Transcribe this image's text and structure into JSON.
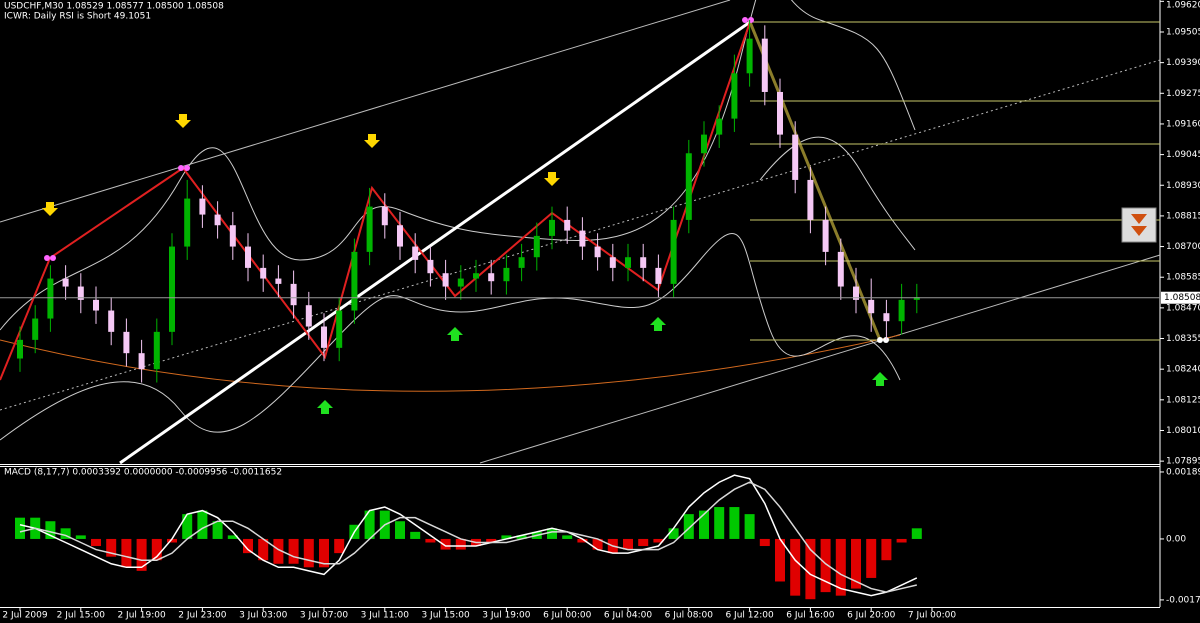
{
  "header": {
    "symbol_line": "USDCHF,M30  1.08529 1.08577 1.08500 1.08508",
    "indicator_line": "ICWR: Daily RSI is Short 49.1051"
  },
  "chart_data": [
    {
      "type": "candlestick",
      "categories": [
        "2 Jul 2009",
        null,
        null,
        null,
        "2 Jul 15:00",
        null,
        null,
        null,
        "2 Jul 19:00",
        null,
        null,
        null,
        "2 Jul 23:00",
        null,
        null,
        null,
        "3 Jul 03:00",
        null,
        null,
        null,
        "3 Jul 07:00",
        null,
        null,
        null,
        "3 Jul 11:00",
        null,
        null,
        null,
        "3 Jul 15:00",
        null,
        null,
        null,
        "3 Jul 19:00",
        null,
        null,
        null,
        "6 Jul 00:00",
        null,
        null,
        null,
        "6 Jul 04:00",
        null,
        null,
        null,
        "6 Jul 08:00",
        null,
        null,
        null,
        "6 Jul 12:00",
        null,
        null,
        null,
        "6 Jul 16:00",
        null,
        null,
        null,
        "6 Jul 20:00",
        null,
        null,
        null,
        "7 Jul 00:00"
      ],
      "open": [
        1.0828,
        1.0835,
        1.0843,
        1.0858,
        1.0855,
        1.085,
        1.0846,
        1.0838,
        1.083,
        1.0824,
        1.0838,
        1.087,
        1.0888,
        1.0882,
        1.0878,
        1.087,
        1.0862,
        1.0858,
        1.0856,
        1.0848,
        1.084,
        1.0832,
        1.0846,
        1.0868,
        1.0885,
        1.0878,
        1.087,
        1.0865,
        1.086,
        1.0855,
        1.0858,
        1.086,
        1.0857,
        1.0862,
        1.0866,
        1.0874,
        1.088,
        1.0876,
        1.087,
        1.0866,
        1.0862,
        1.0866,
        1.0862,
        1.0856,
        1.088,
        1.0905,
        1.0912,
        1.0918,
        1.0935,
        1.0948,
        1.0928,
        1.0912,
        1.0895,
        1.088,
        1.0868,
        1.0855,
        1.085,
        1.0845,
        1.0842,
        1.085,
        null
      ],
      "high": [
        1.084,
        1.0848,
        1.0863,
        1.0863,
        1.086,
        1.0855,
        1.0851,
        1.0843,
        1.0835,
        1.0843,
        1.0875,
        1.0895,
        1.0893,
        1.0887,
        1.0883,
        1.0875,
        1.0867,
        1.0863,
        1.0861,
        1.0853,
        1.0845,
        1.0851,
        1.0873,
        1.0892,
        1.089,
        1.0883,
        1.0875,
        1.087,
        1.0865,
        1.0863,
        1.0865,
        1.0865,
        1.0867,
        1.0871,
        1.0879,
        1.0885,
        1.0885,
        1.0881,
        1.0875,
        1.0871,
        1.0871,
        1.0871,
        1.0867,
        1.0885,
        1.091,
        1.0917,
        1.0923,
        1.0942,
        1.0955,
        1.0953,
        1.0933,
        1.0917,
        1.09,
        1.0885,
        1.0873,
        1.0862,
        1.0858,
        1.085,
        1.0856,
        1.0856,
        null
      ],
      "low": [
        1.0823,
        1.083,
        1.0838,
        1.085,
        1.0845,
        1.0841,
        1.0833,
        1.0825,
        1.0819,
        1.0819,
        1.0833,
        1.0865,
        1.0877,
        1.0873,
        1.0865,
        1.0857,
        1.0853,
        1.0851,
        1.0843,
        1.0835,
        1.0827,
        1.0827,
        1.0841,
        1.0863,
        1.0873,
        1.0865,
        1.086,
        1.0855,
        1.085,
        1.085,
        1.0853,
        1.0852,
        1.0852,
        1.0857,
        1.0861,
        1.0869,
        1.0871,
        1.0865,
        1.0861,
        1.0857,
        1.0857,
        1.0857,
        1.0851,
        1.0851,
        1.0875,
        1.09,
        1.0907,
        1.0913,
        1.093,
        1.0923,
        1.0907,
        1.089,
        1.0875,
        1.0863,
        1.085,
        1.0845,
        1.0838,
        1.0835,
        1.0837,
        1.0845,
        null
      ],
      "close": [
        1.0835,
        1.0843,
        1.0858,
        1.0855,
        1.085,
        1.0846,
        1.0838,
        1.083,
        1.0824,
        1.0838,
        1.087,
        1.0888,
        1.0882,
        1.0878,
        1.087,
        1.0862,
        1.0858,
        1.0856,
        1.0848,
        1.084,
        1.0832,
        1.0846,
        1.0868,
        1.0885,
        1.0878,
        1.087,
        1.0865,
        1.086,
        1.0855,
        1.0858,
        1.086,
        1.0857,
        1.0862,
        1.0866,
        1.0874,
        1.088,
        1.0876,
        1.087,
        1.0866,
        1.0862,
        1.0866,
        1.0862,
        1.0856,
        1.088,
        1.0905,
        1.0912,
        1.0918,
        1.0935,
        1.0948,
        1.0928,
        1.0912,
        1.0895,
        1.088,
        1.0868,
        1.0855,
        1.085,
        1.0845,
        1.0842,
        1.085,
        1.0851,
        null
      ],
      "up_color": "#00b400",
      "down_color": "#f5c8f5",
      "ylim": [
        1.07888,
        1.09625
      ],
      "yticks": [
        {
          "value": 1.0962,
          "label": "1.09620"
        },
        1.09505,
        {
          "value": 1.0939,
          "label": "1.09390"
        },
        1.09275,
        {
          "value": 1.0916,
          "label": "1.09160"
        },
        1.09045,
        {
          "value": 1.0893,
          "label": "1.08930"
        },
        1.08815,
        {
          "value": 1.087,
          "label": "1.08700"
        },
        1.08585,
        {
          "value": 1.0847,
          "label": "1.08470"
        },
        1.08355,
        {
          "value": 1.0824,
          "label": "1.08240"
        },
        1.08125,
        {
          "value": 1.0801,
          "label": "1.08010"
        },
        1.07895
      ],
      "current_price": 1.08508,
      "grid": false
    },
    {
      "type": "bar",
      "title": "MACD (8,17,7) 0.0003392 0.0000000 -0.0009956 -0.0011652",
      "values": [
        0.0006,
        0.0006,
        0.0005,
        0.0003,
        0.0001,
        -0.0002,
        -0.0005,
        -0.0008,
        -0.0009,
        -0.0006,
        -0.0001,
        0.0007,
        0.0008,
        0.0005,
        0.0001,
        -0.0004,
        -0.0006,
        -0.0007,
        -0.0007,
        -0.0008,
        -0.0008,
        -0.0004,
        0.0004,
        0.0008,
        0.0008,
        0.0005,
        0.0002,
        -0.0001,
        -0.0003,
        -0.0003,
        -0.0002,
        -0.0001,
        0.0001,
        0.0001,
        0.0002,
        0.0003,
        0.0001,
        -0.0001,
        -0.0003,
        -0.0004,
        -0.0003,
        -0.0002,
        -0.0001,
        0.0003,
        0.0007,
        0.0008,
        0.0009,
        0.0009,
        0.0007,
        -0.0002,
        -0.0012,
        -0.0016,
        -0.0017,
        -0.0015,
        -0.0016,
        -0.0014,
        -0.0011,
        -0.0006,
        -0.0001,
        0.0003,
        null
      ],
      "pos_color": "#00c800",
      "neg_color": "#e00000",
      "lines": [
        {
          "color": "#ffffff",
          "values": [
            0.0004,
            0.0003,
            0.0001,
            -0.0001,
            -0.0003,
            -0.0005,
            -0.0007,
            -0.0008,
            -0.0008,
            -0.0005,
            0.0,
            0.0007,
            0.0008,
            0.0006,
            0.0002,
            -0.0003,
            -0.0006,
            -0.0008,
            -0.0008,
            -0.0009,
            -0.001,
            -0.0006,
            0.0002,
            0.0008,
            0.0009,
            0.0007,
            0.0004,
            0.0001,
            -0.0002,
            -0.0002,
            -0.0002,
            -0.0001,
            0.0,
            0.0001,
            0.0002,
            0.0003,
            0.0002,
            0.0,
            -0.0003,
            -0.0004,
            -0.0004,
            -0.0003,
            -0.0002,
            0.0003,
            0.0009,
            0.0013,
            0.0016,
            0.0018,
            0.0017,
            0.001,
            0.0,
            -0.0006,
            -0.001,
            -0.0012,
            -0.0014,
            -0.0015,
            -0.0016,
            -0.0015,
            -0.0013,
            -0.0011,
            null
          ]
        },
        {
          "color": "#d8d8d8",
          "values": [
            0.0002,
            0.0003,
            0.0002,
            0.0001,
            -0.0001,
            -0.0003,
            -0.0004,
            -0.0005,
            -0.0006,
            -0.0006,
            -0.0004,
            0.0,
            0.0003,
            0.0005,
            0.0005,
            0.0003,
            0.0,
            -0.0003,
            -0.0005,
            -0.0006,
            -0.0007,
            -0.0007,
            -0.0004,
            0.0,
            0.0004,
            0.0006,
            0.0006,
            0.0004,
            0.0002,
            0.0,
            -0.0001,
            -0.0001,
            -0.0001,
            0.0,
            0.0001,
            0.0002,
            0.0002,
            0.0001,
            0.0,
            -0.0002,
            -0.0003,
            -0.0003,
            -0.0003,
            -0.0001,
            0.0003,
            0.0007,
            0.0011,
            0.0014,
            0.0016,
            0.0014,
            0.0009,
            0.0003,
            -0.0003,
            -0.0007,
            -0.001,
            -0.0012,
            -0.0014,
            -0.0015,
            -0.0014,
            -0.0013,
            null
          ]
        }
      ],
      "ylim": [
        -0.00192,
        0.00203
      ],
      "yticks": [
        0.00189,
        {
          "value": 0,
          "label": "0.00"
        },
        -0.00172
      ],
      "grid": false
    }
  ]
}
